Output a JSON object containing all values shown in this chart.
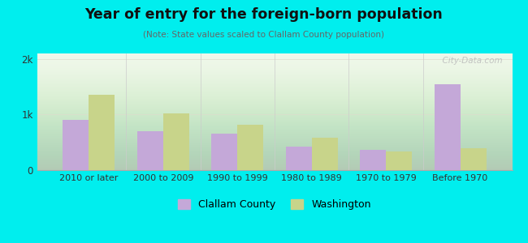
{
  "title": "Year of entry for the foreign-born population",
  "subtitle": "(Note: State values scaled to Clallam County population)",
  "categories": [
    "2010 or later",
    "2000 to 2009",
    "1990 to 1999",
    "1980 to 1989",
    "1970 to 1979",
    "Before 1970"
  ],
  "clallam_values": [
    900,
    700,
    660,
    430,
    370,
    1550
  ],
  "washington_values": [
    1350,
    1020,
    820,
    590,
    330,
    390
  ],
  "clallam_color": "#c4a8d8",
  "washington_color": "#c8d48a",
  "background_color": "#00eeee",
  "plot_bg_top": "#e8f5e0",
  "plot_bg_bottom": "#f5faf0",
  "ylim": [
    0,
    2100
  ],
  "ytick_labels": [
    "0",
    "1k",
    "2k"
  ],
  "ytick_values": [
    0,
    1000,
    2000
  ],
  "grid_color": "#ddddcc",
  "watermark": "  City-Data.com",
  "bar_width": 0.35,
  "legend_clallam": "Clallam County",
  "legend_washington": "Washington"
}
